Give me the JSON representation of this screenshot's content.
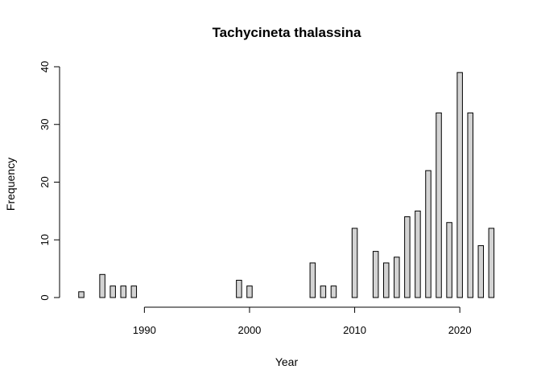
{
  "chart_data": {
    "type": "bar",
    "title": "Tachycineta thalassina",
    "xlabel": "Year",
    "ylabel": "Frequency",
    "x": [
      1984,
      1985,
      1986,
      1987,
      1988,
      1989,
      1990,
      1991,
      1992,
      1993,
      1994,
      1995,
      1996,
      1997,
      1998,
      1999,
      2000,
      2001,
      2002,
      2003,
      2004,
      2005,
      2006,
      2007,
      2008,
      2009,
      2010,
      2011,
      2012,
      2013,
      2014,
      2015,
      2016,
      2017,
      2018,
      2019,
      2020,
      2021,
      2022,
      2023
    ],
    "values": [
      1,
      0,
      4,
      2,
      2,
      2,
      0,
      0,
      0,
      0,
      0,
      0,
      0,
      0,
      0,
      3,
      2,
      0,
      0,
      0,
      0,
      0,
      6,
      2,
      2,
      0,
      12,
      0,
      8,
      6,
      7,
      14,
      15,
      22,
      32,
      13,
      39,
      32,
      9,
      12
    ],
    "xticks": [
      1990,
      2000,
      2010,
      2020
    ],
    "yticks": [
      0,
      10,
      20,
      30,
      40
    ],
    "xlim": [
      1984,
      2023
    ],
    "ylim": [
      0,
      40
    ],
    "grid": false,
    "legend": "none",
    "bar_color": "#d3d3d3",
    "edge_color": "#000000"
  }
}
